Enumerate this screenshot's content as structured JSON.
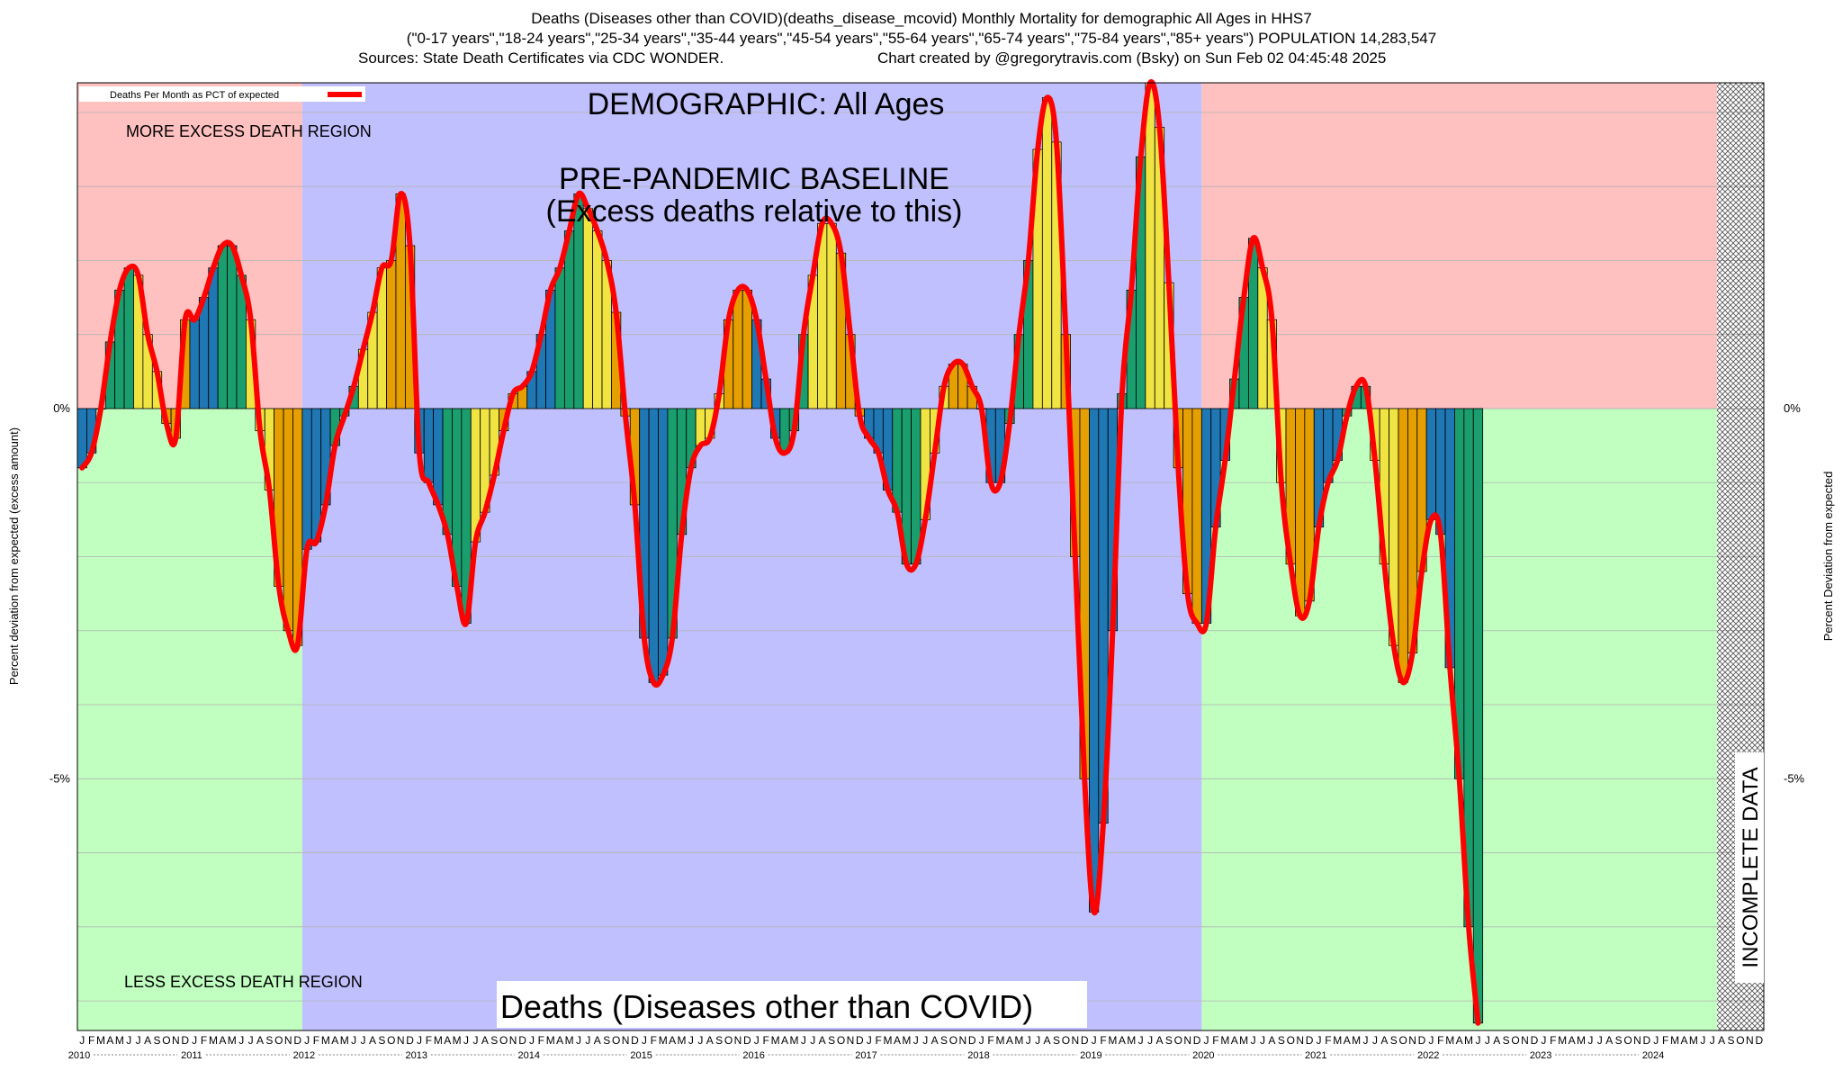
{
  "header": {
    "line1": "Deaths (Diseases other than COVID)(deaths_disease_mcovid) Monthly Mortality for demographic All Ages in HHS7",
    "line2": "(\"0-17 years\",\"18-24 years\",\"25-34 years\",\"35-44 years\",\"45-54 years\",\"55-64 years\",\"65-74 years\",\"75-84 years\",\"85+ years\") POPULATION 14,283,547",
    "line3_source": "Sources: State Death Certificates via CDC WONDER.",
    "line3_credit": "Chart created by @gregorytravis.com (Bsky) on Sun Feb 02 04:45:48 2025"
  },
  "labels": {
    "demographic": "DEMOGRAPHIC: All Ages",
    "baseline_line1": "PRE-PANDEMIC BASELINE",
    "baseline_line2": "(Excess deaths relative to this)",
    "more_region": "MORE EXCESS DEATH REGION",
    "less_region": "LESS EXCESS DEATH REGION",
    "footer": "Deaths (Diseases other than COVID)",
    "incomplete": "INCOMPLETE DATA",
    "legend": "Deaths Per Month as PCT of expected",
    "ylabel_left": "Percent deviation from expected (excess amount)",
    "ylabel_right": "Percent Deviation from expected"
  },
  "colors": {
    "excess_region": "#ffc0c0",
    "less_region": "#c0ffc0",
    "baseline_region": "#c0c0ff",
    "line": "#ff0000",
    "bar_palette": [
      "#1f77b4",
      "#1a9e6e",
      "#f0e442",
      "#e69f00"
    ]
  },
  "chart_data": {
    "type": "bar",
    "title": "Deaths (Diseases other than COVID)(deaths_disease_mcovid) Monthly Mortality for demographic All Ages in HHS7",
    "ylabel": "Percent deviation from expected (excess amount)",
    "ylabel_right": "Percent Deviation from expected",
    "ylim": [
      -8.4,
      4.4
    ],
    "y_ticks": [
      {
        "value": 0,
        "label": "0%"
      },
      {
        "value": -5,
        "label": "-5%"
      }
    ],
    "grid": true,
    "legend_placement": "top-left",
    "start": "2010-01",
    "month_letters": [
      "J",
      "F",
      "M",
      "A",
      "M",
      "J",
      "J",
      "A",
      "S",
      "O",
      "N",
      "D"
    ],
    "years": [
      "2010",
      "2011",
      "2012",
      "2013",
      "2014",
      "2015",
      "2016",
      "2017",
      "2018",
      "2019",
      "2020",
      "2021",
      "2022",
      "2023",
      "2024"
    ],
    "regions": [
      {
        "name": "pre-pandemic baseline",
        "from": "2012-01",
        "to": "2019-12"
      },
      {
        "name": "incomplete data",
        "from": "2024-08",
        "to": "2024-12"
      }
    ],
    "series": [
      {
        "name": "Deaths Per Month as PCT of expected",
        "values": [
          -0.8,
          -0.6,
          0.0,
          0.9,
          1.6,
          1.9,
          1.8,
          1.0,
          0.5,
          -0.2,
          -0.4,
          1.2,
          1.2,
          1.5,
          1.9,
          2.2,
          2.2,
          1.8,
          1.2,
          -0.3,
          -1.1,
          -2.4,
          -3.0,
          -3.2,
          -1.9,
          -1.8,
          -1.3,
          -0.5,
          -0.1,
          0.3,
          0.8,
          1.3,
          1.9,
          2.0,
          2.9,
          2.2,
          -0.6,
          -1.0,
          -1.3,
          -1.7,
          -2.4,
          -2.9,
          -1.8,
          -1.4,
          -0.9,
          -0.3,
          0.2,
          0.3,
          0.5,
          1.0,
          1.6,
          1.9,
          2.4,
          2.9,
          2.7,
          2.4,
          2.0,
          1.3,
          -0.1,
          -1.3,
          -3.1,
          -3.7,
          -3.6,
          -3.1,
          -1.7,
          -0.8,
          -0.5,
          -0.4,
          0.2,
          1.2,
          1.6,
          1.6,
          1.2,
          0.4,
          -0.4,
          -0.6,
          -0.3,
          1.0,
          1.8,
          2.5,
          2.5,
          2.1,
          1.0,
          -0.1,
          -0.4,
          -0.6,
          -1.1,
          -1.4,
          -2.1,
          -2.1,
          -1.5,
          -0.6,
          0.3,
          0.6,
          0.6,
          0.3,
          0.0,
          -1.0,
          -1.0,
          -0.2,
          1.0,
          2.0,
          3.5,
          4.2,
          3.6,
          1.0,
          -2.0,
          -5.0,
          -6.8,
          -5.6,
          -3.0,
          0.2,
          1.6,
          3.4,
          4.4,
          3.8,
          1.7,
          -0.8,
          -2.5,
          -2.9,
          -2.9,
          -1.6,
          -0.7,
          0.4,
          1.5,
          2.3,
          1.9,
          1.2,
          -1.0,
          -2.1,
          -2.8,
          -2.6,
          -1.6,
          -1.0,
          -0.7,
          -0.1,
          0.3,
          0.3,
          -0.7,
          -2.1,
          -3.2,
          -3.7,
          -3.3,
          -2.2,
          -1.5,
          -1.7,
          -3.5,
          -5.0,
          -7.0,
          -8.3
        ]
      }
    ],
    "annotations": [
      "DEMOGRAPHIC: All Ages",
      "PRE-PANDEMIC BASELINE",
      "(Excess deaths relative to this)",
      "MORE EXCESS DEATH REGION",
      "LESS EXCESS DEATH REGION",
      "INCOMPLETE DATA",
      "Deaths (Diseases other than COVID)"
    ]
  }
}
